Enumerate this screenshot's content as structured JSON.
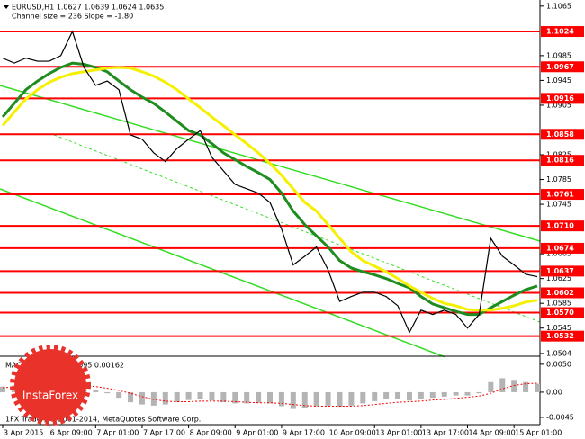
{
  "title": "EURUSD,H1  1.0627 1.0639 1.0624 1.0635",
  "subtitle": "Channel size = 236 Slope = -1.80",
  "footer": "1FX Trader, © 2001-2014, MetaQuotes Software Corp.",
  "logo": "InstaForex",
  "chart_data": [
    {
      "type": "line",
      "categories": [
        "3 Apr 2015",
        null,
        null,
        null,
        "6 Apr 09:00",
        null,
        null,
        null,
        "7 Apr 01:00",
        null,
        null,
        null,
        "7 Apr 17:00",
        null,
        null,
        null,
        "8 Apr 09:00",
        null,
        null,
        null,
        "9 Apr 01:00",
        null,
        null,
        null,
        "9 Apr 17:00",
        null,
        null,
        null,
        "10 Apr 09:00",
        null,
        null,
        null,
        "13 Apr 01:00",
        null,
        null,
        null,
        "13 Apr 17:00",
        null,
        null,
        null,
        "14 Apr 09:00",
        null,
        null,
        null,
        "15 Apr 01:00",
        null,
        null
      ],
      "series": [
        {
          "color": "#000000",
          "values": [
            1.0981,
            1.0973,
            1.0981,
            1.0976,
            1.0976,
            1.0985,
            1.1024,
            1.0966,
            1.0937,
            1.0944,
            1.093,
            1.0857,
            1.085,
            1.0828,
            1.0814,
            1.0835,
            1.085,
            1.0864,
            1.0821,
            1.0799,
            1.0777,
            1.077,
            1.0763,
            1.0748,
            1.0705,
            1.0647,
            1.0661,
            1.0676,
            1.0639,
            1.0588,
            1.0596,
            1.0603,
            1.0603,
            1.0596,
            1.0581,
            1.0538,
            1.0574,
            1.0567,
            1.0574,
            1.0567,
            1.0545,
            1.0567,
            1.069,
            1.0661,
            1.0647,
            1.0632,
            1.0628
          ]
        },
        {
          "color": "#1e8c1e",
          "values": [
            1.0886,
            1.0908,
            1.093,
            1.0944,
            1.0956,
            1.0966,
            1.0973,
            1.0971,
            1.0966,
            1.0959,
            1.0944,
            1.093,
            1.0918,
            1.0908,
            1.0894,
            1.0879,
            1.0864,
            1.0857,
            1.0843,
            1.0828,
            1.0817,
            1.0806,
            1.0796,
            1.0785,
            1.0763,
            1.0734,
            1.0712,
            1.0694,
            1.0676,
            1.0654,
            1.0642,
            1.0636,
            1.0631,
            1.0625,
            1.0617,
            1.061,
            1.0596,
            1.0584,
            1.0578,
            1.0572,
            1.0567,
            1.0567,
            1.0578,
            1.0588,
            1.0598,
            1.0607,
            1.0613
          ]
        },
        {
          "color": "#f5f000",
          "values": [
            1.0872,
            1.0894,
            1.0915,
            1.093,
            1.0942,
            1.095,
            1.0956,
            1.0959,
            1.0962,
            1.0965,
            1.0966,
            1.0965,
            1.0959,
            1.0952,
            1.0942,
            1.093,
            1.0915,
            1.0901,
            1.0886,
            1.0872,
            1.0857,
            1.0843,
            1.0828,
            1.0811,
            1.0792,
            1.077,
            1.0748,
            1.0734,
            1.0712,
            1.069,
            1.0668,
            1.0654,
            1.0645,
            1.0636,
            1.0625,
            1.0613,
            1.0603,
            1.0593,
            1.0585,
            1.0581,
            1.0575,
            1.0574,
            1.0574,
            1.0577,
            1.0581,
            1.0587,
            1.059
          ]
        }
      ],
      "ylim": [
        1.0501,
        1.1072
      ],
      "yticks": [
        1.1065,
        1.0985,
        1.0945,
        1.0905,
        1.0825,
        1.0785,
        1.0745,
        1.0665,
        1.0625,
        1.0585,
        1.0545,
        1.0504
      ],
      "levels": [
        1.1024,
        1.0967,
        1.0916,
        1.0858,
        1.0816,
        1.0761,
        {
          "value": 1.071,
          "label": "1.0710"
        },
        1.0674,
        1.0637,
        1.0602,
        {
          "value": 1.057,
          "label": "1.0570"
        },
        1.0532
      ],
      "levels_color": "#ff0000"
    },
    {
      "type": "bar",
      "title": "MACD(12,26,9) 0.00095 0.00162",
      "color": "#b4b4b4",
      "values": [
        0.001,
        0.0012,
        0.0013,
        0.0012,
        0.0011,
        0.0012,
        0.0016,
        0.001,
        0.0003,
        -0.0002,
        -0.001,
        -0.0018,
        -0.0022,
        -0.0024,
        -0.0022,
        -0.0018,
        -0.0014,
        -0.0012,
        -0.0015,
        -0.0018,
        -0.002,
        -0.002,
        -0.0019,
        -0.002,
        -0.0025,
        -0.003,
        -0.0028,
        -0.0025,
        -0.0024,
        -0.0026,
        -0.0024,
        -0.002,
        -0.0016,
        -0.0013,
        -0.0012,
        -0.0015,
        -0.0012,
        -0.001,
        -0.0008,
        -0.0006,
        -0.0006,
        -0.0002,
        0.0018,
        0.0025,
        0.0022,
        0.0018,
        0.0015
      ],
      "signal": {
        "color": "#ff0000",
        "values": [
          0.0008,
          0.0009,
          0.001,
          0.0011,
          0.0011,
          0.0011,
          0.0012,
          0.0012,
          0.001,
          0.0007,
          0.0003,
          -0.0002,
          -0.0008,
          -0.0013,
          -0.0016,
          -0.0017,
          -0.0017,
          -0.0016,
          -0.0016,
          -0.0016,
          -0.0017,
          -0.0018,
          -0.0019,
          -0.0019,
          -0.002,
          -0.0022,
          -0.0024,
          -0.0025,
          -0.0025,
          -0.0025,
          -0.0025,
          -0.0024,
          -0.0022,
          -0.002,
          -0.0018,
          -0.0017,
          -0.0016,
          -0.0014,
          -0.0013,
          -0.0011,
          -0.0009,
          -0.0007,
          -0.0002,
          0.0006,
          0.0012,
          0.0015,
          0.0016
        ]
      },
      "ylim": [
        -0.0058,
        0.0061
      ],
      "yticks": [
        {
          "value": 0.005,
          "label": "0.0050"
        },
        {
          "value": 0,
          "label": "0.00"
        },
        {
          "value": -0.0045,
          "label": "-0.0045"
        }
      ]
    }
  ]
}
